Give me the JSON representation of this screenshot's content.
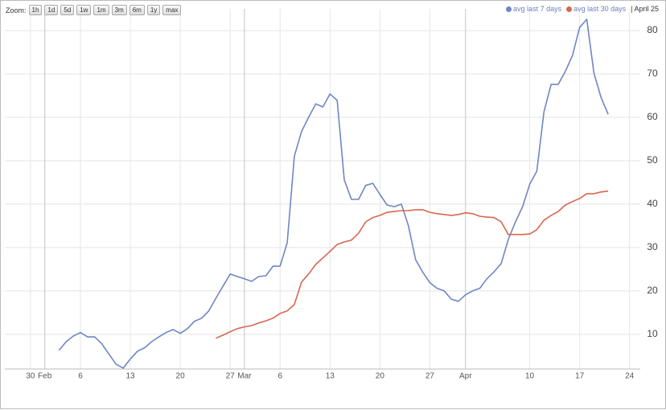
{
  "zoom": {
    "label": "Zoom:",
    "buttons": [
      "1h",
      "1d",
      "5d",
      "1w",
      "1m",
      "3m",
      "6m",
      "1y",
      "max"
    ]
  },
  "chart_data": {
    "type": "line",
    "date_label": "April 25",
    "xlim": [
      -3.6,
      85.5
    ],
    "xticks": [
      {
        "value": 0,
        "label": "30"
      },
      {
        "value": 2,
        "label": "Feb"
      },
      {
        "value": 7,
        "label": "6"
      },
      {
        "value": 14,
        "label": "13"
      },
      {
        "value": 21,
        "label": "20"
      },
      {
        "value": 28,
        "label": "27"
      },
      {
        "value": 30,
        "label": "Mar"
      },
      {
        "value": 35,
        "label": "6"
      },
      {
        "value": 42,
        "label": "13"
      },
      {
        "value": 49,
        "label": "20"
      },
      {
        "value": 56,
        "label": "27"
      },
      {
        "value": 61,
        "label": "Apr"
      },
      {
        "value": 70,
        "label": "10"
      },
      {
        "value": 77,
        "label": "17"
      },
      {
        "value": 84,
        "label": "24"
      }
    ],
    "ylim": [
      2,
      85
    ],
    "yticks": [
      10,
      20,
      30,
      40,
      50,
      60,
      70,
      80
    ],
    "grid": true,
    "series": [
      {
        "name": "avg last 7 days",
        "color": "#6f86c6",
        "x": [
          4,
          5,
          6,
          7,
          8,
          9,
          10,
          11,
          12,
          13,
          14,
          15,
          16,
          17,
          18,
          19,
          20,
          21,
          22,
          23,
          24,
          25,
          26,
          27,
          28,
          29,
          30,
          31,
          32,
          33,
          34,
          35,
          36,
          37,
          38,
          39,
          40,
          41,
          42,
          43,
          44,
          45,
          46,
          47,
          48,
          49,
          50,
          51,
          52,
          53,
          54,
          55,
          56,
          57,
          58,
          59,
          60,
          61,
          62,
          63,
          64,
          65,
          66,
          67,
          68,
          69,
          70,
          71,
          72,
          73,
          74,
          75,
          76,
          77,
          78,
          79,
          80,
          81
        ],
        "values": [
          6.3,
          8.3,
          9.6,
          10.4,
          9.4,
          9.4,
          7.8,
          5.4,
          3.1,
          2.2,
          4.3,
          6.1,
          6.9,
          8.3,
          9.4,
          10.4,
          11.1,
          10.2,
          11.3,
          13,
          13.7,
          15.4,
          18.3,
          21.1,
          23.9,
          23.3,
          22.8,
          22.2,
          23.3,
          23.5,
          25.7,
          25.7,
          31.1,
          51.1,
          56.7,
          60,
          63.1,
          62.4,
          65.4,
          63.9,
          45.6,
          41.1,
          41.1,
          44.3,
          44.8,
          42.2,
          39.8,
          39.4,
          40,
          35,
          27.2,
          24.3,
          21.9,
          20.6,
          20,
          18.1,
          17.6,
          19.1,
          20,
          20.6,
          22.8,
          24.4,
          26.3,
          31.9,
          35.9,
          39.4,
          44.6,
          47.6,
          61.3,
          67.6,
          67.6,
          70.6,
          74.3,
          80.7,
          82.6,
          70.2,
          64.6,
          60.7
        ]
      },
      {
        "name": "avg last 30 days",
        "color": "#d8674f",
        "x": [
          26,
          27,
          28,
          29,
          30,
          31,
          32,
          33,
          34,
          35,
          36,
          37,
          38,
          39,
          40,
          41,
          42,
          43,
          44,
          45,
          46,
          47,
          48,
          49,
          50,
          51,
          52,
          53,
          54,
          55,
          56,
          57,
          58,
          59,
          60,
          61,
          62,
          63,
          64,
          65,
          66,
          67,
          68,
          69,
          70,
          71,
          72,
          73,
          74,
          75,
          76,
          77,
          78,
          79,
          80,
          81
        ],
        "values": [
          9.1,
          9.8,
          10.6,
          11.3,
          11.7,
          12,
          12.6,
          13.1,
          13.7,
          14.8,
          15.4,
          16.9,
          22,
          23.9,
          26.1,
          27.6,
          29.1,
          30.7,
          31.3,
          31.7,
          33.3,
          35.9,
          36.9,
          37.4,
          38.1,
          38.3,
          38.5,
          38.5,
          38.7,
          38.7,
          38.1,
          37.8,
          37.6,
          37.4,
          37.6,
          38,
          37.8,
          37.2,
          37,
          36.9,
          35.9,
          33,
          33,
          33,
          33.1,
          34.1,
          36.3,
          37.4,
          38.3,
          39.8,
          40.6,
          41.3,
          42.4,
          42.4,
          42.8,
          43
        ]
      }
    ]
  }
}
